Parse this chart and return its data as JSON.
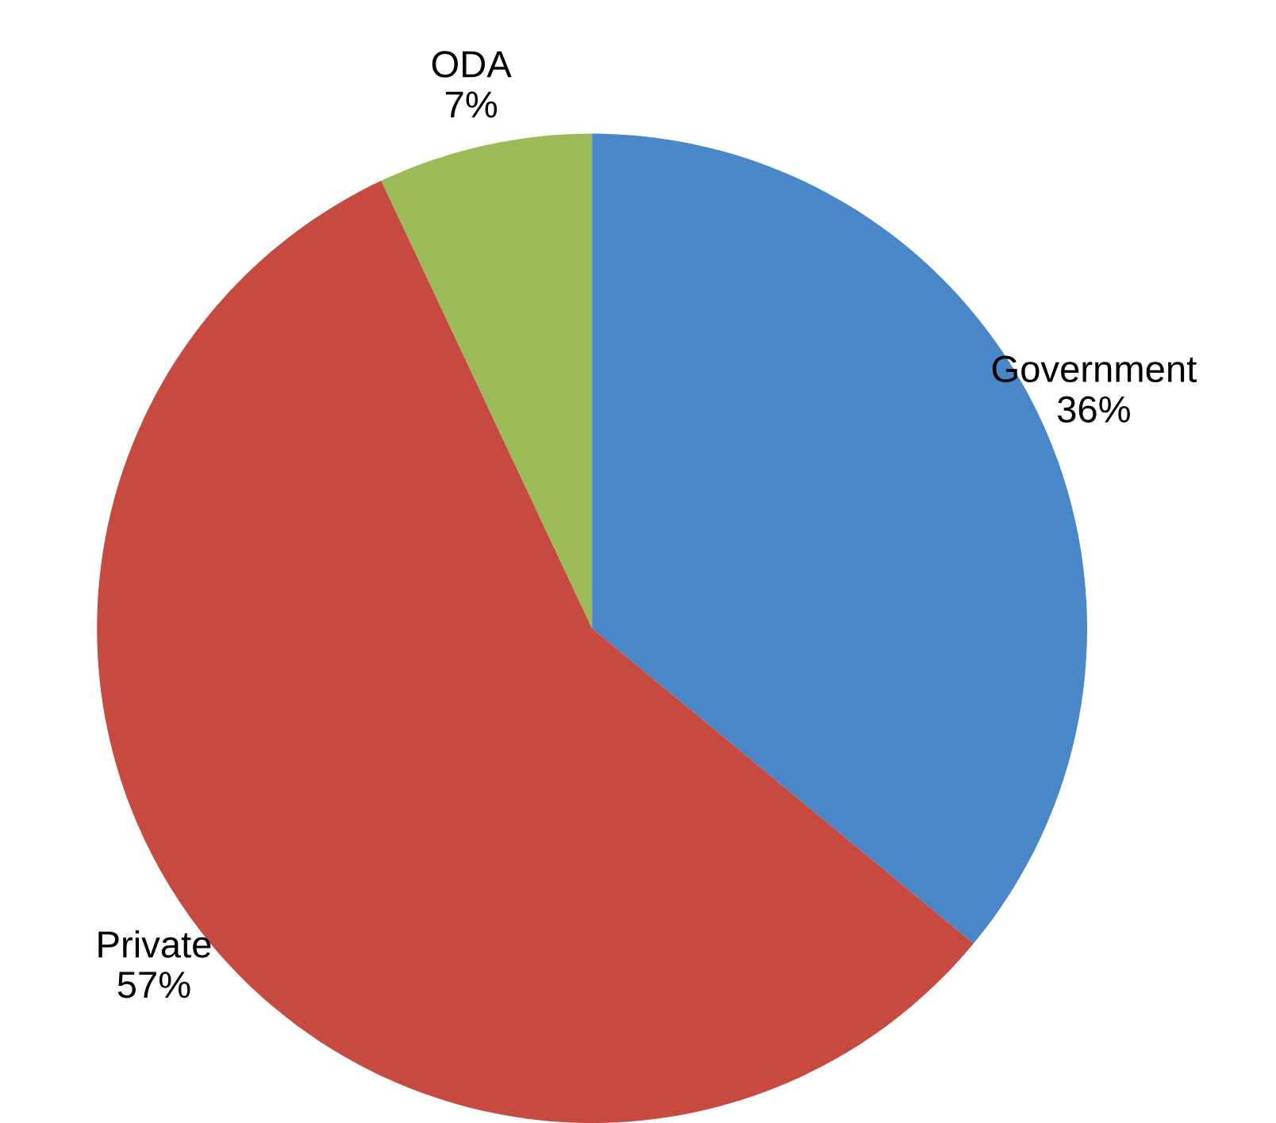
{
  "chart_data": {
    "type": "pie",
    "categories": [
      "Government",
      "Private",
      "ODA"
    ],
    "values": [
      36,
      57,
      7
    ],
    "value_labels": [
      "36%",
      "57%",
      "7%"
    ],
    "colors": [
      "#4a87c9",
      "#c74a40",
      "#9bbb59"
    ]
  }
}
